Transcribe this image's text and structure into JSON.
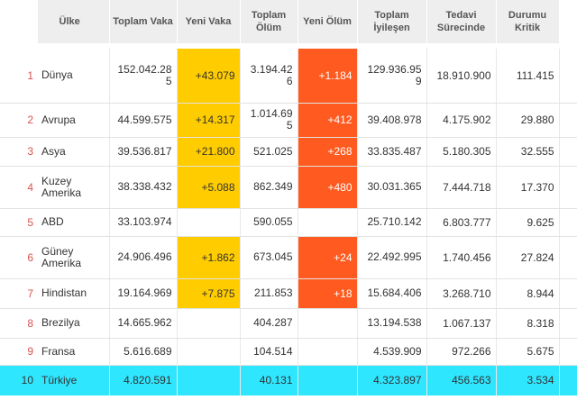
{
  "headers": {
    "country": "Ülke",
    "total_cases": "Toplam Vaka",
    "new_cases": "Yeni Vaka",
    "total_deaths": "Toplam Ölüm",
    "new_deaths": "Yeni Ölüm",
    "total_recovered": "Toplam İyileşen",
    "active": "Tedavi Sürecinde",
    "critical": "Durumu Kritik"
  },
  "rows": [
    {
      "rank": "1",
      "country": "Dünya",
      "total_cases": "152.042.285",
      "new_cases": "+43.079",
      "total_deaths": "3.194.426",
      "new_deaths": "+1.184",
      "total_recovered": "129.936.959",
      "active": "18.910.900",
      "critical": "111.415"
    },
    {
      "rank": "2",
      "country": "Avrupa",
      "total_cases": "44.599.575",
      "new_cases": "+14.317",
      "total_deaths": "1.014.695",
      "new_deaths": "+412",
      "total_recovered": "39.408.978",
      "active": "4.175.902",
      "critical": "29.880"
    },
    {
      "rank": "3",
      "country": "Asya",
      "total_cases": "39.536.817",
      "new_cases": "+21.800",
      "total_deaths": "521.025",
      "new_deaths": "+268",
      "total_recovered": "33.835.487",
      "active": "5.180.305",
      "critical": "32.555"
    },
    {
      "rank": "4",
      "country": "Kuzey Amerika",
      "total_cases": "38.338.432",
      "new_cases": "+5.088",
      "total_deaths": "862.349",
      "new_deaths": "+480",
      "total_recovered": "30.031.365",
      "active": "7.444.718",
      "critical": "17.370"
    },
    {
      "rank": "5",
      "country": "ABD",
      "total_cases": "33.103.974",
      "new_cases": "",
      "total_deaths": "590.055",
      "new_deaths": "",
      "total_recovered": "25.710.142",
      "active": "6.803.777",
      "critical": "9.625"
    },
    {
      "rank": "6",
      "country": "Güney Amerika",
      "total_cases": "24.906.496",
      "new_cases": "+1.862",
      "total_deaths": "673.045",
      "new_deaths": "+24",
      "total_recovered": "22.492.995",
      "active": "1.740.456",
      "critical": "27.824"
    },
    {
      "rank": "7",
      "country": "Hindistan",
      "total_cases": "19.164.969",
      "new_cases": "+7.875",
      "total_deaths": "211.853",
      "new_deaths": "+18",
      "total_recovered": "15.684.406",
      "active": "3.268.710",
      "critical": "8.944"
    },
    {
      "rank": "8",
      "country": "Brezilya",
      "total_cases": "14.665.962",
      "new_cases": "",
      "total_deaths": "404.287",
      "new_deaths": "",
      "total_recovered": "13.194.538",
      "active": "1.067.137",
      "critical": "8.318"
    },
    {
      "rank": "9",
      "country": "Fransa",
      "total_cases": "5.616.689",
      "new_cases": "",
      "total_deaths": "104.514",
      "new_deaths": "",
      "total_recovered": "4.539.909",
      "active": "972.266",
      "critical": "5.675"
    },
    {
      "rank": "10",
      "country": "Türkiye",
      "total_cases": "4.820.591",
      "new_cases": "",
      "total_deaths": "40.131",
      "new_deaths": "",
      "total_recovered": "4.323.897",
      "active": "456.563",
      "critical": "3.534"
    }
  ],
  "highlight_row": "10",
  "colors": {
    "header_bg": "#eeeeee",
    "new_cases_bg": "#ffcc00",
    "new_deaths_bg": "#ff5a1f",
    "highlight_bg": "#2fe6ff",
    "rank_color": "#d9534f"
  }
}
